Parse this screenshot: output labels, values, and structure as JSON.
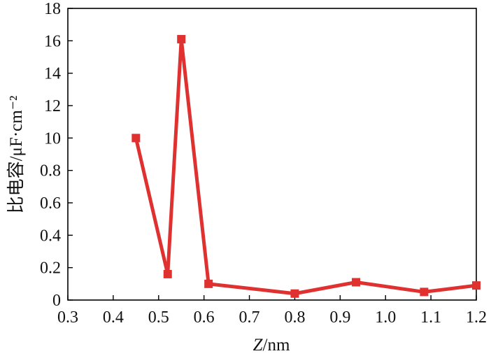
{
  "chart_data": {
    "type": "line",
    "title": "",
    "xlabel_italic": "Z",
    "xlabel_rest": "/nm",
    "ylabel": "比电容/μF·cm⁻²",
    "xlim": [
      0.3,
      1.2
    ],
    "x_ticks": [
      "0.3",
      "0.4",
      "0.5",
      "0.6",
      "0.7",
      "0.8",
      "0.9",
      "1.0",
      "1.1",
      "1.2"
    ],
    "y_ticks": [
      "0",
      "0.2",
      "0.4",
      "0.6",
      "0.8",
      "10",
      "12",
      "14",
      "16",
      "18"
    ],
    "y_axis_note": "broken/non-linear scale: ticks 0, 0.2, 0.4, 0.6, 0.8, then 10, 12, 14, 16, 18 at equal spacing",
    "series": [
      {
        "x": [
          0.45,
          0.52,
          0.55,
          0.61,
          0.8,
          0.935,
          1.085,
          1.2
        ],
        "y": [
          10.0,
          0.16,
          16.1,
          0.1,
          0.04,
          0.11,
          0.05,
          0.09
        ]
      }
    ],
    "grid": false,
    "legend": "none",
    "line_color": "#e03131",
    "marker": "square"
  }
}
